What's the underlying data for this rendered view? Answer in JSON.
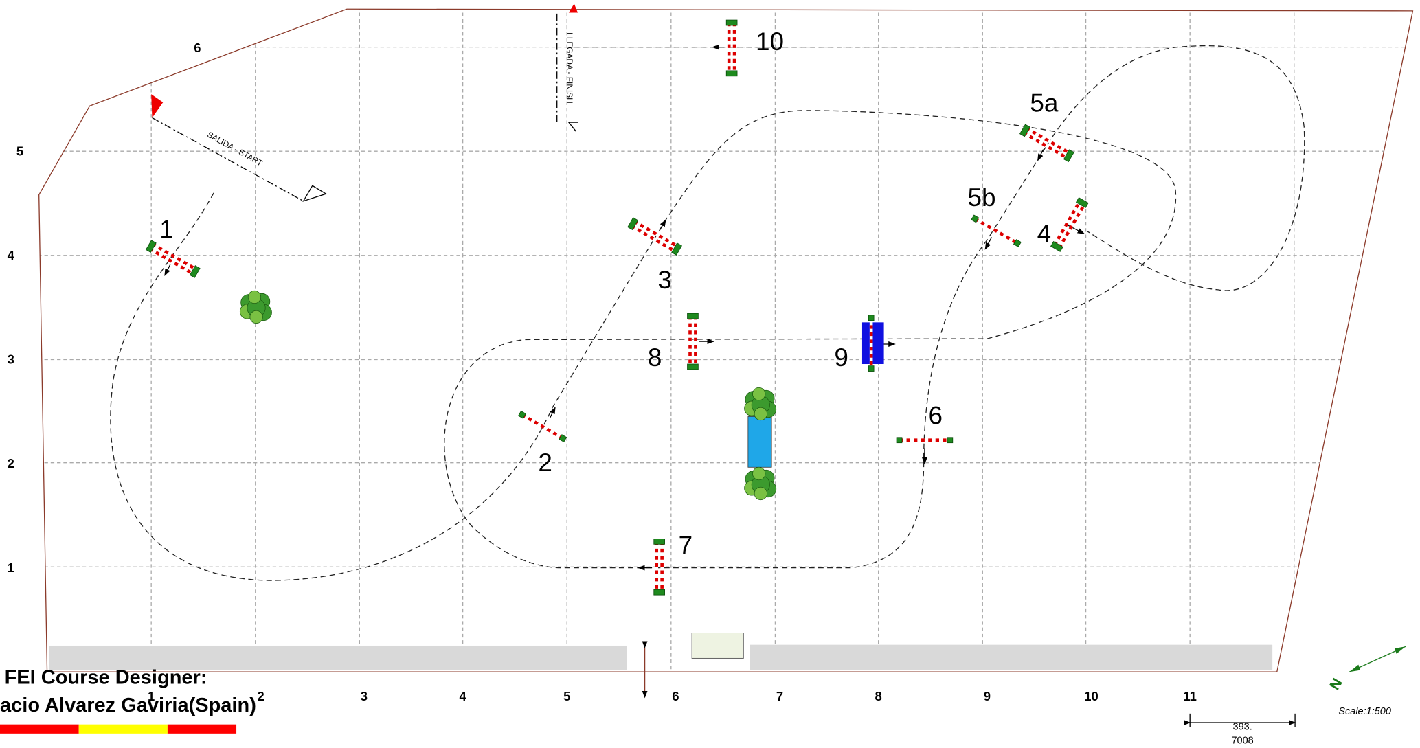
{
  "top_label": "6",
  "left_labels": [
    "5",
    "4",
    "3",
    "2",
    "1"
  ],
  "bottom_labels": [
    "1",
    "2",
    "3",
    "4",
    "5",
    "6",
    "7",
    "8",
    "9",
    "10",
    "11"
  ],
  "fences": [
    {
      "label": "1"
    },
    {
      "label": "2"
    },
    {
      "label": "3"
    },
    {
      "label": "4"
    },
    {
      "label": "5a"
    },
    {
      "label": "5b"
    },
    {
      "label": "6"
    },
    {
      "label": "7"
    },
    {
      "label": "8"
    },
    {
      "label": "9"
    },
    {
      "label": "10"
    }
  ],
  "start": "SALIDA - START",
  "finish": "LLEGADA - FINISH",
  "designer": {
    "title": "FEI Course Designer:",
    "name": "acio Alvarez Gaviria(Spain)"
  },
  "compass": "N",
  "scale": "Scale:1:500",
  "measure": [
    "393.",
    "7008"
  ]
}
